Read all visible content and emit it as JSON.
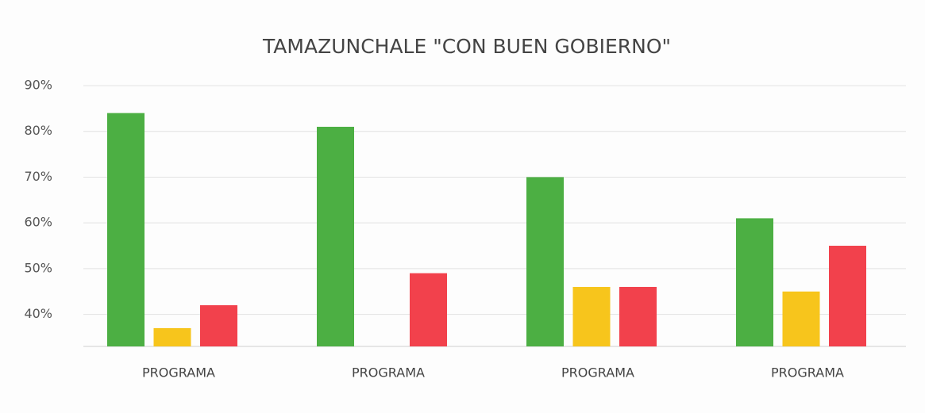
{
  "chart_data": {
    "type": "bar",
    "title": "TAMAZUNCHALE \"CON BUEN GOBIERNO\"",
    "categories": [
      "PROGRAMA",
      "PROGRAMA",
      "PROGRAMA",
      "PROGRAMA"
    ],
    "series": [
      {
        "color": "#4caf43",
        "values": [
          84,
          81,
          70,
          61
        ]
      },
      {
        "color": "#f7c51c",
        "values": [
          37,
          null,
          46,
          45
        ]
      },
      {
        "color": "#f2414c",
        "values": [
          42,
          49,
          46,
          55
        ]
      }
    ],
    "ylim": [
      33,
      90
    ],
    "yticks": [
      {
        "value": 40,
        "label": "40%"
      },
      {
        "value": 50,
        "label": "50%"
      },
      {
        "value": 60,
        "label": "60%"
      },
      {
        "value": 70,
        "label": "70%"
      },
      {
        "value": 80,
        "label": "80%"
      },
      {
        "value": 90,
        "label": "90%"
      }
    ],
    "grid": true
  }
}
